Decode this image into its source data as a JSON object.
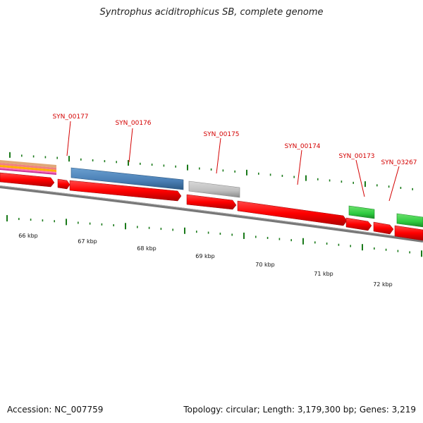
{
  "title": "Syntrophus aciditrophicus SB, complete genome",
  "accession": "Accession: NC_007759",
  "summary": "Topology: circular; Length: 3,179,300 bp; Genes: 3,219",
  "colors": {
    "cds": "#ff0000",
    "blue_feature": "#4a7fb5",
    "grey_feature": "#bdbdbd",
    "green_feature": "#2ecc40",
    "backbone": "#777777",
    "ticks": "#1a7a1a",
    "label": "#d40000"
  },
  "gene_labels": [
    {
      "id": "SYN_00177",
      "label": "SYN_00177"
    },
    {
      "id": "SYN_00176",
      "label": "SYN_00176"
    },
    {
      "id": "SYN_00175",
      "label": "SYN_00175"
    },
    {
      "id": "SYN_00174",
      "label": "SYN_00174"
    },
    {
      "id": "SYN_00173",
      "label": "SYN_00173"
    },
    {
      "id": "SYN_03267",
      "label": "SYN_03267"
    }
  ],
  "kbp_labels": [
    "66 kbp",
    "67 kbp",
    "68 kbp",
    "69 kbp",
    "70 kbp",
    "71 kbp",
    "72 kbp"
  ]
}
